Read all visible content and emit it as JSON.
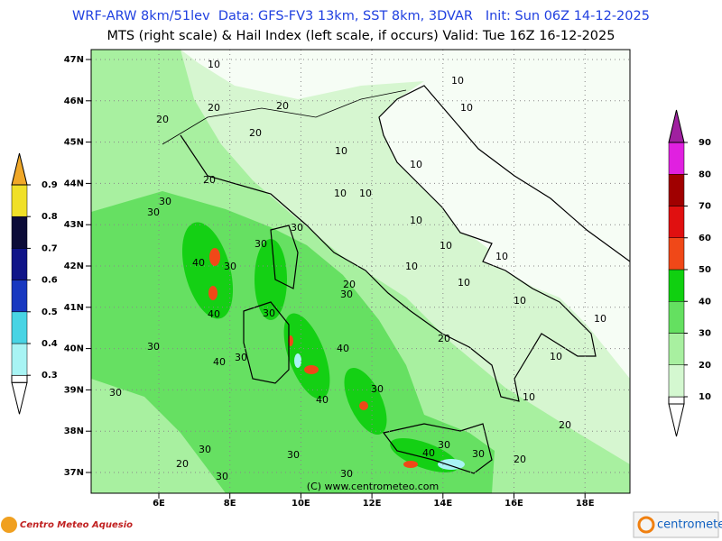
{
  "header": {
    "line1": "WRF-ARW 8km/51lev  Data: GFS-FV3 13km, SST 8km, 3DVAR   Init: Sun 06Z 14-12-2025",
    "line2": "MTS (right scale) & Hail Index (left scale, if occurs) Valid: Tue 16Z 16-12-2025"
  },
  "map": {
    "lat_labels": [
      "47N",
      "46N",
      "45N",
      "44N",
      "43N",
      "42N",
      "41N",
      "40N",
      "39N",
      "38N",
      "37N"
    ],
    "lon_labels": [
      "6E",
      "8E",
      "10E",
      "12E",
      "14E",
      "16E",
      "18E"
    ],
    "contour_labels": [
      10,
      10,
      20,
      20,
      10,
      20,
      20,
      10,
      10,
      20,
      30,
      30,
      10,
      10,
      10,
      30,
      30,
      10,
      40,
      30,
      10,
      10,
      20,
      30,
      10,
      10,
      40,
      30,
      10,
      30,
      20,
      40,
      30,
      40,
      10,
      30,
      40,
      30,
      10,
      20,
      30,
      40,
      30,
      30,
      20,
      30,
      30,
      30,
      20
    ],
    "watermark": "(C) www.centrometeo.com"
  },
  "hail_scale": {
    "levels": [
      0.3,
      0.4,
      0.5,
      0.6,
      0.7,
      0.8,
      0.9
    ],
    "colors": [
      "#ffffff",
      "#a8f4f4",
      "#48d4e4",
      "#1838c0",
      "#101488",
      "#0c0c38",
      "#f0e028",
      "#f0a828"
    ]
  },
  "mts_scale": {
    "levels": [
      10,
      20,
      30,
      40,
      50,
      60,
      70,
      80,
      90
    ],
    "colors": [
      "#ffffff",
      "#d4f8d0",
      "#a8f0a0",
      "#64e060",
      "#10d010",
      "#f04818",
      "#e01010",
      "#a00000",
      "#e020e0",
      "#a020a0"
    ]
  },
  "footer": {
    "left_logo": "Centro Meteo Aquesio",
    "right_logo": "centrometeo"
  }
}
